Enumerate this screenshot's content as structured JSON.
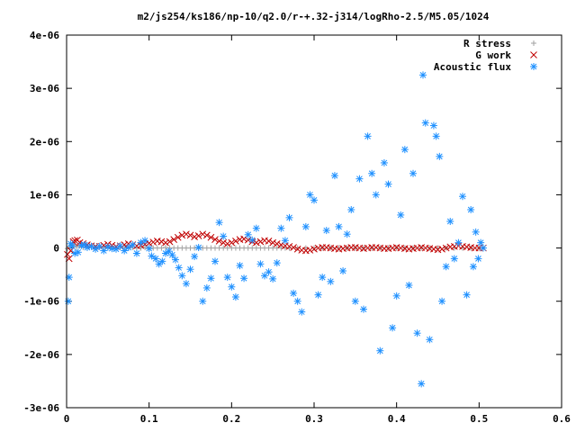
{
  "chart_data": {
    "type": "scatter",
    "title": "m2/js254/ks186/np-10/q2.0/r-+.32-j314/logRho-2.5/M5.05/1024",
    "xlabel": "",
    "ylabel": "",
    "xlim": [
      0,
      0.6
    ],
    "ylim": [
      -3e-06,
      4e-06
    ],
    "x_ticks": [
      0,
      0.1,
      0.2,
      0.3,
      0.4,
      0.5,
      0.6
    ],
    "x_tick_labels": [
      "0",
      "0.1",
      "0.2",
      "0.3",
      "0.4",
      "0.5",
      "0.6"
    ],
    "y_ticks": [
      -3e-06,
      -2e-06,
      -1e-06,
      0,
      1e-06,
      2e-06,
      3e-06,
      4e-06
    ],
    "y_tick_labels": [
      "-3e-06",
      "-2e-06",
      "-1e-06",
      "0",
      "1e-06",
      "2e-06",
      "3e-06",
      "4e-06"
    ],
    "grid": false,
    "legend_position": "top-right",
    "series": [
      {
        "name": "R stress",
        "marker": "plus",
        "color": "#a0a0a0",
        "points": [
          [
            0.001,
            -1e-08
          ],
          [
            0.004,
            3e-08
          ],
          [
            0.008,
            5e-08
          ],
          [
            0.012,
            2e-08
          ],
          [
            0.016,
            4e-08
          ],
          [
            0.02,
            1e-08
          ],
          [
            0.025,
            3e-08
          ],
          [
            0.03,
            2e-08
          ],
          [
            0.035,
            1e-08
          ],
          [
            0.04,
            2e-08
          ],
          [
            0.045,
            1e-08
          ],
          [
            0.05,
            0
          ],
          [
            0.055,
            1e-08
          ],
          [
            0.06,
            0
          ],
          [
            0.065,
            1e-08
          ],
          [
            0.07,
            0
          ],
          [
            0.075,
            0
          ],
          [
            0.08,
            1e-08
          ],
          [
            0.085,
            0
          ],
          [
            0.09,
            0
          ],
          [
            0.095,
            1e-08
          ],
          [
            0.1,
            0
          ],
          [
            0.105,
            0
          ],
          [
            0.11,
            0
          ],
          [
            0.115,
            0
          ],
          [
            0.12,
            1e-08
          ],
          [
            0.125,
            0
          ],
          [
            0.13,
            0
          ],
          [
            0.135,
            0
          ],
          [
            0.14,
            0
          ],
          [
            0.145,
            0
          ],
          [
            0.15,
            0
          ],
          [
            0.155,
            0
          ],
          [
            0.16,
            0
          ],
          [
            0.165,
            0
          ],
          [
            0.17,
            0
          ],
          [
            0.175,
            0
          ],
          [
            0.18,
            0
          ],
          [
            0.185,
            0
          ],
          [
            0.19,
            0
          ],
          [
            0.195,
            0
          ],
          [
            0.2,
            0
          ],
          [
            0.205,
            0
          ],
          [
            0.21,
            0
          ],
          [
            0.215,
            0
          ],
          [
            0.22,
            0
          ],
          [
            0.225,
            0
          ],
          [
            0.23,
            0
          ],
          [
            0.235,
            0
          ],
          [
            0.24,
            0
          ],
          [
            0.245,
            0
          ],
          [
            0.25,
            0
          ],
          [
            0.255,
            0
          ],
          [
            0.26,
            0
          ],
          [
            0.265,
            0
          ],
          [
            0.27,
            0
          ],
          [
            0.28,
            0
          ],
          [
            0.29,
            0
          ],
          [
            0.3,
            0
          ],
          [
            0.31,
            0
          ],
          [
            0.32,
            0
          ],
          [
            0.33,
            0
          ],
          [
            0.34,
            0
          ],
          [
            0.35,
            0
          ],
          [
            0.36,
            0
          ],
          [
            0.37,
            0
          ],
          [
            0.38,
            0
          ],
          [
            0.39,
            0
          ],
          [
            0.4,
            0
          ],
          [
            0.41,
            0
          ],
          [
            0.42,
            0
          ],
          [
            0.43,
            0
          ],
          [
            0.44,
            0
          ],
          [
            0.45,
            0
          ],
          [
            0.46,
            0
          ],
          [
            0.47,
            0
          ],
          [
            0.48,
            0
          ],
          [
            0.49,
            0
          ],
          [
            0.5,
            0
          ],
          [
            0.505,
            0
          ]
        ]
      },
      {
        "name": "G work",
        "marker": "cross",
        "color": "#c00000",
        "points": [
          [
            0.001,
            -1.2e-07
          ],
          [
            0.003,
            -2e-07
          ],
          [
            0.005,
            -5e-08
          ],
          [
            0.008,
            1.2e-07
          ],
          [
            0.01,
            1.4e-07
          ],
          [
            0.013,
            1.5e-07
          ],
          [
            0.016,
            1e-07
          ],
          [
            0.02,
            8e-08
          ],
          [
            0.025,
            6e-08
          ],
          [
            0.03,
            4e-08
          ],
          [
            0.035,
            3e-08
          ],
          [
            0.04,
            3e-08
          ],
          [
            0.045,
            5e-08
          ],
          [
            0.05,
            7e-08
          ],
          [
            0.055,
            5e-08
          ],
          [
            0.06,
            3e-08
          ],
          [
            0.065,
            4e-08
          ],
          [
            0.07,
            6e-08
          ],
          [
            0.075,
            8e-08
          ],
          [
            0.08,
            6e-08
          ],
          [
            0.085,
            4e-08
          ],
          [
            0.09,
            5e-08
          ],
          [
            0.095,
            7e-08
          ],
          [
            0.1,
            9e-08
          ],
          [
            0.105,
            1.1e-07
          ],
          [
            0.11,
            1.3e-07
          ],
          [
            0.115,
            1.2e-07
          ],
          [
            0.12,
            1e-07
          ],
          [
            0.125,
            1.2e-07
          ],
          [
            0.13,
            1.6e-07
          ],
          [
            0.135,
            2e-07
          ],
          [
            0.14,
            2.4e-07
          ],
          [
            0.145,
            2.6e-07
          ],
          [
            0.15,
            2.4e-07
          ],
          [
            0.155,
            2.1e-07
          ],
          [
            0.16,
            2.3e-07
          ],
          [
            0.165,
            2.6e-07
          ],
          [
            0.17,
            2.4e-07
          ],
          [
            0.175,
            2e-07
          ],
          [
            0.18,
            1.6e-07
          ],
          [
            0.185,
            1.3e-07
          ],
          [
            0.19,
            1e-07
          ],
          [
            0.195,
            8e-08
          ],
          [
            0.2,
            1e-07
          ],
          [
            0.205,
            1.3e-07
          ],
          [
            0.21,
            1.6e-07
          ],
          [
            0.215,
            1.7e-07
          ],
          [
            0.22,
            1.5e-07
          ],
          [
            0.225,
            1.2e-07
          ],
          [
            0.23,
            1e-07
          ],
          [
            0.235,
            1.2e-07
          ],
          [
            0.24,
            1.4e-07
          ],
          [
            0.245,
            1.3e-07
          ],
          [
            0.25,
            1e-07
          ],
          [
            0.255,
            8e-08
          ],
          [
            0.26,
            6e-08
          ],
          [
            0.265,
            4e-08
          ],
          [
            0.27,
            3e-08
          ],
          [
            0.275,
            1e-08
          ],
          [
            0.28,
            -2e-08
          ],
          [
            0.285,
            -4e-08
          ],
          [
            0.29,
            -5e-08
          ],
          [
            0.295,
            -4e-08
          ],
          [
            0.3,
            -2e-08
          ],
          [
            0.305,
            0
          ],
          [
            0.31,
            1e-08
          ],
          [
            0.315,
            1e-08
          ],
          [
            0.32,
            0
          ],
          [
            0.325,
            -1e-08
          ],
          [
            0.33,
            -2e-08
          ],
          [
            0.335,
            -1e-08
          ],
          [
            0.34,
            0
          ],
          [
            0.345,
            1e-08
          ],
          [
            0.35,
            1e-08
          ],
          [
            0.355,
            0
          ],
          [
            0.36,
            -1e-08
          ],
          [
            0.365,
            0
          ],
          [
            0.37,
            1e-08
          ],
          [
            0.375,
            1e-08
          ],
          [
            0.38,
            0
          ],
          [
            0.385,
            -1e-08
          ],
          [
            0.39,
            -1e-08
          ],
          [
            0.395,
            0
          ],
          [
            0.4,
            1e-08
          ],
          [
            0.405,
            0
          ],
          [
            0.41,
            -1e-08
          ],
          [
            0.415,
            -2e-08
          ],
          [
            0.42,
            -1e-08
          ],
          [
            0.425,
            0
          ],
          [
            0.43,
            1e-08
          ],
          [
            0.435,
            0
          ],
          [
            0.44,
            -1e-08
          ],
          [
            0.445,
            -2e-08
          ],
          [
            0.45,
            -3e-08
          ],
          [
            0.455,
            -2e-08
          ],
          [
            0.46,
            0
          ],
          [
            0.465,
            2e-08
          ],
          [
            0.47,
            3e-08
          ],
          [
            0.475,
            4e-08
          ],
          [
            0.48,
            3e-08
          ],
          [
            0.485,
            2e-08
          ],
          [
            0.49,
            1e-08
          ],
          [
            0.495,
            0
          ],
          [
            0.5,
            0
          ],
          [
            0.505,
            0
          ]
        ]
      },
      {
        "name": "Acoustic flux",
        "marker": "star",
        "color": "#1e90ff",
        "points": [
          [
            0.002,
            -1e-06
          ],
          [
            0.003,
            -5.5e-07
          ],
          [
            0.005,
            8e-08
          ],
          [
            0.007,
            3e-08
          ],
          [
            0.01,
            -1e-07
          ],
          [
            0.014,
            -8e-08
          ],
          [
            0.018,
            5e-08
          ],
          [
            0.022,
            6e-08
          ],
          [
            0.025,
            1e-08
          ],
          [
            0.03,
            3e-08
          ],
          [
            0.035,
            -2e-08
          ],
          [
            0.04,
            3e-08
          ],
          [
            0.045,
            -5e-08
          ],
          [
            0.05,
            2e-08
          ],
          [
            0.055,
            -1e-08
          ],
          [
            0.06,
            -2e-08
          ],
          [
            0.065,
            4e-08
          ],
          [
            0.07,
            -5e-08
          ],
          [
            0.075,
            1e-08
          ],
          [
            0.08,
            6e-08
          ],
          [
            0.085,
            -1e-07
          ],
          [
            0.09,
            1e-07
          ],
          [
            0.095,
            1.4e-07
          ],
          [
            0.1,
            -1e-08
          ],
          [
            0.103,
            -1.5e-07
          ],
          [
            0.108,
            -2e-07
          ],
          [
            0.112,
            -3e-07
          ],
          [
            0.116,
            -2.5e-07
          ],
          [
            0.12,
            -1e-07
          ],
          [
            0.124,
            -6e-08
          ],
          [
            0.128,
            -1.3e-07
          ],
          [
            0.132,
            -2.2e-07
          ],
          [
            0.136,
            -3.7e-07
          ],
          [
            0.14,
            -5.2e-07
          ],
          [
            0.145,
            -6.7e-07
          ],
          [
            0.15,
            -4e-07
          ],
          [
            0.155,
            -1.6e-07
          ],
          [
            0.16,
            1e-08
          ],
          [
            0.165,
            -1e-06
          ],
          [
            0.17,
            -7.5e-07
          ],
          [
            0.175,
            -5.7e-07
          ],
          [
            0.18,
            -2.5e-07
          ],
          [
            0.185,
            4.8e-07
          ],
          [
            0.19,
            2.2e-07
          ],
          [
            0.195,
            -5.5e-07
          ],
          [
            0.2,
            -7.3e-07
          ],
          [
            0.205,
            -9.2e-07
          ],
          [
            0.21,
            -3.3e-07
          ],
          [
            0.215,
            -5.7e-07
          ],
          [
            0.22,
            2.5e-07
          ],
          [
            0.225,
            1.5e-07
          ],
          [
            0.23,
            3.7e-07
          ],
          [
            0.235,
            -3e-07
          ],
          [
            0.24,
            -5.2e-07
          ],
          [
            0.245,
            -4.5e-07
          ],
          [
            0.25,
            -5.8e-07
          ],
          [
            0.255,
            -2.8e-07
          ],
          [
            0.26,
            3.7e-07
          ],
          [
            0.265,
            1.4e-07
          ],
          [
            0.27,
            5.7e-07
          ],
          [
            0.275,
            -8.5e-07
          ],
          [
            0.28,
            -1e-06
          ],
          [
            0.285,
            -1.2e-06
          ],
          [
            0.29,
            4e-07
          ],
          [
            0.295,
            1e-06
          ],
          [
            0.3,
            9e-07
          ],
          [
            0.305,
            -8.8e-07
          ],
          [
            0.31,
            -5.5e-07
          ],
          [
            0.315,
            3.3e-07
          ],
          [
            0.32,
            -6.3e-07
          ],
          [
            0.325,
            1.36e-06
          ],
          [
            0.33,
            4e-07
          ],
          [
            0.335,
            -4.3e-07
          ],
          [
            0.34,
            2.6e-07
          ],
          [
            0.345,
            7.2e-07
          ],
          [
            0.35,
            -1e-06
          ],
          [
            0.355,
            1.3e-06
          ],
          [
            0.36,
            -1.15e-06
          ],
          [
            0.365,
            2.1e-06
          ],
          [
            0.37,
            1.4e-06
          ],
          [
            0.375,
            1e-06
          ],
          [
            0.38,
            -1.93e-06
          ],
          [
            0.385,
            1.6e-06
          ],
          [
            0.39,
            1.2e-06
          ],
          [
            0.395,
            -1.5e-06
          ],
          [
            0.4,
            -9e-07
          ],
          [
            0.405,
            6.2e-07
          ],
          [
            0.41,
            1.85e-06
          ],
          [
            0.415,
            -7e-07
          ],
          [
            0.42,
            1.4e-06
          ],
          [
            0.425,
            -1.6e-06
          ],
          [
            0.43,
            -2.55e-06
          ],
          [
            0.432,
            3.25e-06
          ],
          [
            0.435,
            2.35e-06
          ],
          [
            0.44,
            -1.72e-06
          ],
          [
            0.445,
            2.3e-06
          ],
          [
            0.448,
            2.1e-06
          ],
          [
            0.452,
            1.72e-06
          ],
          [
            0.455,
            -1e-06
          ],
          [
            0.46,
            -3.5e-07
          ],
          [
            0.465,
            5e-07
          ],
          [
            0.47,
            -2e-07
          ],
          [
            0.475,
            1e-07
          ],
          [
            0.48,
            9.7e-07
          ],
          [
            0.485,
            -8.8e-07
          ],
          [
            0.49,
            7.2e-07
          ],
          [
            0.493,
            -3.5e-07
          ],
          [
            0.496,
            3e-07
          ],
          [
            0.499,
            -2e-07
          ],
          [
            0.502,
            1e-07
          ],
          [
            0.505,
            0
          ]
        ]
      }
    ]
  }
}
